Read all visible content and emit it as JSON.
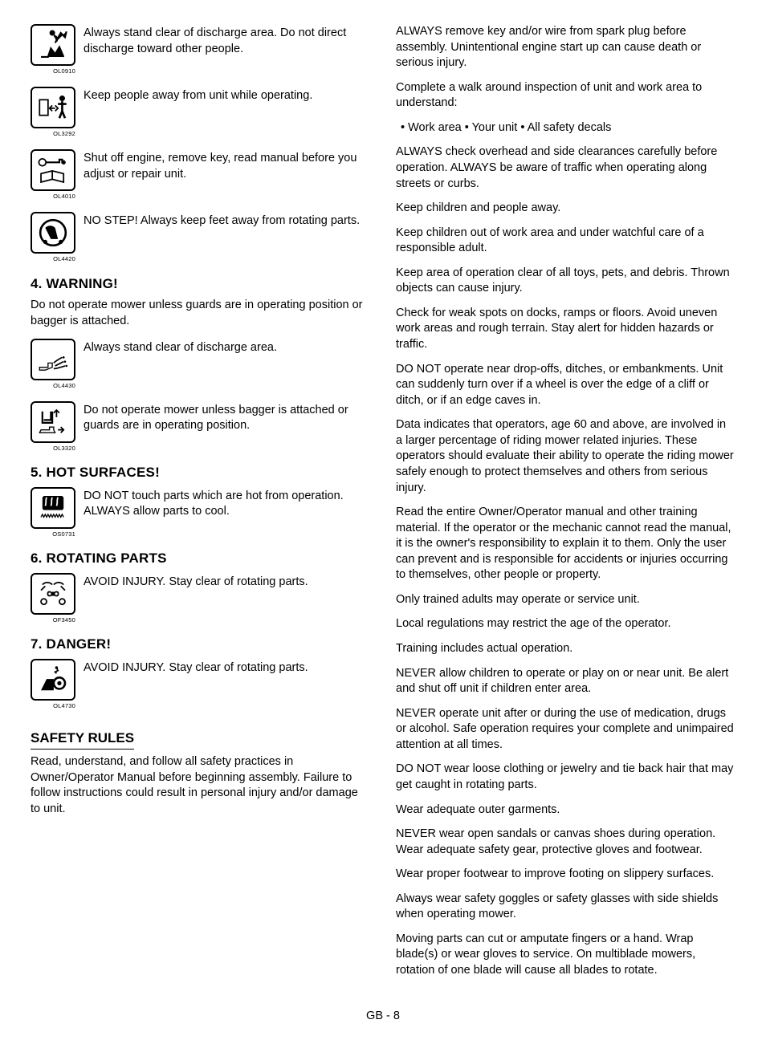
{
  "left": {
    "icons": [
      {
        "code": "OL0910",
        "text": "Always stand clear of discharge area. Do not direct discharge toward other people.",
        "svg": "discharge"
      },
      {
        "code": "OL3292",
        "text": "Keep people away from unit while operating.",
        "svg": "people-away"
      },
      {
        "code": "OL4010",
        "text": "Shut off engine, remove key, read manual before you adjust or repair unit.",
        "svg": "key-manual"
      },
      {
        "code": "OL4420",
        "text": "NO STEP! Always keep feet away from rotating parts.",
        "svg": "no-step"
      }
    ],
    "sections": [
      {
        "heading": "4. WARNING!",
        "intro": "Do not operate mower unless guards are in operating position or bagger is attached.",
        "icons": [
          {
            "code": "OL4430",
            "text": "Always stand clear of discharge area.",
            "svg": "discharge-area"
          },
          {
            "code": "OL3320",
            "text": " Do not operate mower unless bagger is attached or guards are in operating position.",
            "svg": "bagger"
          }
        ]
      },
      {
        "heading": "5. HOT SURFACES!",
        "icons": [
          {
            "code": "OS0731",
            "text": "DO NOT touch parts which are hot from operation. ALWAYS allow parts to cool.",
            "svg": "hot"
          }
        ]
      },
      {
        "heading": "6. ROTATING PARTS",
        "icons": [
          {
            "code": "OF3450",
            "text": "AVOID INJURY. Stay clear of rotating parts.",
            "svg": "rotating"
          }
        ]
      },
      {
        "heading": "7. DANGER!",
        "icons": [
          {
            "code": "OL4730",
            "text": "AVOID INJURY. Stay clear of rotating parts.",
            "svg": "danger"
          }
        ]
      }
    ],
    "rules_heading": "SAFETY RULES",
    "rules_intro": "Read, understand, and follow all safety practices in Owner/Operator Manual before beginning assembly. Failure to follow instructions could result in personal injury and/or damage to unit."
  },
  "right": {
    "paras": [
      "ALWAYS remove key and/or wire from spark plug before assembly. Unintentional engine start up can cause death or serious injury.",
      "Complete a walk around inspection of unit and work area to understand:"
    ],
    "bullets": " • Work area   • Your unit   • All safety decals",
    "paras2": [
      "ALWAYS check overhead and side clearances carefully before operation. ALWAYS be aware of traffic when operating along streets or curbs.",
      "Keep children and people away.",
      "Keep children out of work area and under watchful care of a responsible adult.",
      "Keep area of operation clear of all toys, pets, and debris. Thrown objects can cause injury.",
      "Check for weak spots on docks, ramps or floors. Avoid uneven work areas and rough terrain. Stay alert for hidden hazards or traffic.",
      "DO NOT operate near drop-offs, ditches, or embankments. Unit can suddenly turn over if a wheel is over the edge of a cliff or ditch, or if an edge caves in.",
      "Data indicates that operators, age 60 and above, are involved in a larger percentage of riding mower related injuries. These operators should evaluate their ability to operate the riding mower safely enough to protect themselves and others from serious injury.",
      "Read the entire Owner/Operator manual and other training material. If the operator or the mechanic cannot read the manual, it is the owner's responsibility to explain it to them. Only the user can prevent and is responsible for accidents or injuries occurring to themselves, other people or property.",
      "Only trained adults may operate or service unit.",
      "Local regulations may restrict the age of the operator.",
      "Training includes actual operation.",
      "NEVER allow children to operate or play on or near unit. Be alert and shut off unit if children enter area.",
      "NEVER operate unit after or during the use of medication, drugs or alcohol. Safe operation requires your complete and unimpaired attention at all times.",
      "DO NOT wear loose clothing or jewelry and tie back hair that may get caught in rotating parts.",
      "Wear adequate outer garments.",
      "NEVER wear open sandals or canvas shoes during operation. Wear adequate safety gear, protective gloves and footwear.",
      "Wear proper footwear to improve footing on slippery surfaces.",
      "Always wear safety goggles or safety glasses with side shields when operating mower.",
      "Moving parts can cut or amputate fingers or a hand. Wrap blade(s) or wear gloves to service. On multiblade mowers, rotation of one blade will cause all blades to rotate."
    ]
  },
  "footer": "GB - 8"
}
